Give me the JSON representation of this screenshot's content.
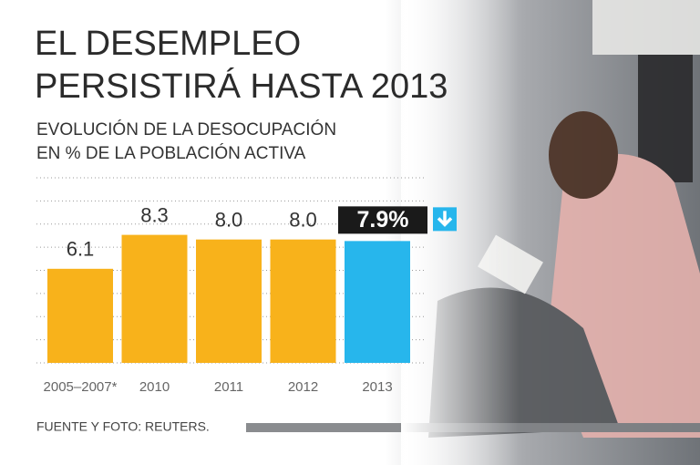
{
  "chart_data": {
    "type": "bar",
    "title": [
      "EL DESEMPLEO",
      "PERSISTIRÁ HASTA 2013"
    ],
    "subtitle": [
      "EVOLUCIÓN DE LA DESOCUPACIÓN",
      "EN % DE LA POBLACIÓN ACTIVA"
    ],
    "categories": [
      "2005–2007*",
      "2010",
      "2011",
      "2012",
      "2013"
    ],
    "values": [
      6.1,
      8.3,
      8,
      8,
      7.9
    ],
    "value_labels": [
      "6.1",
      "8.3",
      "8.0",
      "8.0",
      "7.9%"
    ],
    "colors": [
      "#f8b21b",
      "#f8b21b",
      "#f8b21b",
      "#f8b21b",
      "#27b6ec"
    ],
    "ylim": [
      0,
      12
    ],
    "yticks": [
      0,
      1.5,
      3,
      4.5,
      6,
      7.5,
      9,
      10.5,
      12
    ],
    "grid": true,
    "source": "FUENTE Y FOTO: REUTERS."
  }
}
